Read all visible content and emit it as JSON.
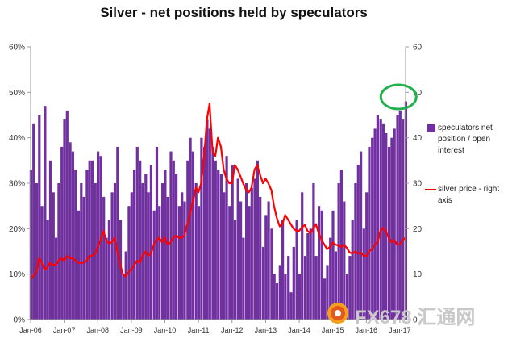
{
  "chart_data": {
    "type": "bar",
    "title": "Silver - net positions held by speculators",
    "x_tick_labels": [
      "Jan-06",
      "Jan-07",
      "Jan-08",
      "Jan-09",
      "Jan-10",
      "Jan-11",
      "Jan-12",
      "Jan-13",
      "Jan-14",
      "Jan-15",
      "Jan-16",
      "Jan-17"
    ],
    "y_left_ticks": [
      "0%",
      "10%",
      "20%",
      "30%",
      "40%",
      "50%",
      "60%"
    ],
    "y_right_ticks": [
      "0",
      "10",
      "20",
      "30",
      "40",
      "50",
      "60"
    ],
    "ylim_left": [
      0,
      60
    ],
    "ylim_right": [
      0,
      60
    ],
    "grid": false,
    "legend_position": "right",
    "series": [
      {
        "name": "speculators net position / open interest",
        "type": "bar",
        "axis": "left",
        "color": "#7030a0",
        "x": [
          2006.0,
          2006.08,
          2006.17,
          2006.25,
          2006.33,
          2006.42,
          2006.5,
          2006.58,
          2006.67,
          2006.75,
          2006.83,
          2006.92,
          2007.0,
          2007.08,
          2007.17,
          2007.25,
          2007.33,
          2007.42,
          2007.5,
          2007.58,
          2007.67,
          2007.75,
          2007.83,
          2007.92,
          2008.0,
          2008.08,
          2008.17,
          2008.25,
          2008.33,
          2008.42,
          2008.5,
          2008.58,
          2008.67,
          2008.75,
          2008.83,
          2008.92,
          2009.0,
          2009.08,
          2009.17,
          2009.25,
          2009.33,
          2009.42,
          2009.5,
          2009.58,
          2009.67,
          2009.75,
          2009.83,
          2009.92,
          2010.0,
          2010.08,
          2010.17,
          2010.25,
          2010.33,
          2010.42,
          2010.5,
          2010.58,
          2010.67,
          2010.75,
          2010.83,
          2010.92,
          2011.0,
          2011.08,
          2011.17,
          2011.25,
          2011.33,
          2011.42,
          2011.5,
          2011.58,
          2011.67,
          2011.75,
          2011.83,
          2011.92,
          2012.0,
          2012.08,
          2012.17,
          2012.25,
          2012.33,
          2012.42,
          2012.5,
          2012.58,
          2012.67,
          2012.75,
          2012.83,
          2012.92,
          2013.0,
          2013.08,
          2013.17,
          2013.25,
          2013.33,
          2013.42,
          2013.5,
          2013.58,
          2013.67,
          2013.75,
          2013.83,
          2013.92,
          2014.0,
          2014.08,
          2014.17,
          2014.25,
          2014.33,
          2014.42,
          2014.5,
          2014.58,
          2014.67,
          2014.75,
          2014.83,
          2014.92,
          2015.0,
          2015.08,
          2015.17,
          2015.25,
          2015.33,
          2015.42,
          2015.5,
          2015.58,
          2015.67,
          2015.75,
          2015.83,
          2015.92,
          2016.0,
          2016.08,
          2016.17,
          2016.25,
          2016.33,
          2016.42,
          2016.5,
          2016.58,
          2016.67,
          2016.75,
          2016.83,
          2016.92,
          2017.0,
          2017.08,
          2017.17
        ],
        "values": [
          33,
          43,
          30,
          45,
          25,
          47,
          22,
          35,
          28,
          18,
          30,
          38,
          44,
          46,
          39,
          37,
          33,
          24,
          30,
          27,
          33,
          35,
          35,
          30,
          37,
          36,
          27,
          18,
          22,
          28,
          30,
          38,
          22,
          10,
          15,
          25,
          28,
          33,
          38,
          35,
          30,
          32,
          28,
          34,
          24,
          38,
          25,
          30,
          33,
          27,
          37,
          35,
          32,
          25,
          28,
          26,
          35,
          40,
          37,
          30,
          25,
          40,
          38,
          44,
          42,
          38,
          35,
          33,
          32,
          28,
          36,
          25,
          34,
          22,
          31,
          26,
          18,
          30,
          25,
          29,
          31,
          35,
          27,
          16,
          23,
          26,
          20,
          10,
          8,
          12,
          22,
          10,
          14,
          6,
          16,
          22,
          10,
          28,
          14,
          19,
          20,
          30,
          14,
          25,
          24,
          9,
          12,
          18,
          24,
          15,
          30,
          33,
          26,
          10,
          14,
          22,
          30,
          34,
          37,
          20,
          28,
          38,
          40,
          42,
          45,
          44,
          43,
          41,
          38,
          40,
          42,
          45,
          46,
          44,
          48
        ]
      },
      {
        "name": "silver price - right axis",
        "type": "line",
        "axis": "right",
        "color": "#ff0000",
        "x": [
          2006.0,
          2006.08,
          2006.17,
          2006.25,
          2006.33,
          2006.42,
          2006.5,
          2006.58,
          2006.67,
          2006.75,
          2006.83,
          2006.92,
          2007.0,
          2007.08,
          2007.17,
          2007.25,
          2007.33,
          2007.42,
          2007.5,
          2007.58,
          2007.67,
          2007.75,
          2007.83,
          2007.92,
          2008.0,
          2008.08,
          2008.17,
          2008.25,
          2008.33,
          2008.42,
          2008.5,
          2008.58,
          2008.67,
          2008.75,
          2008.83,
          2008.92,
          2009.0,
          2009.08,
          2009.17,
          2009.25,
          2009.33,
          2009.42,
          2009.5,
          2009.58,
          2009.67,
          2009.75,
          2009.83,
          2009.92,
          2010.0,
          2010.08,
          2010.17,
          2010.25,
          2010.33,
          2010.42,
          2010.5,
          2010.58,
          2010.67,
          2010.75,
          2010.83,
          2010.92,
          2011.0,
          2011.08,
          2011.17,
          2011.25,
          2011.33,
          2011.42,
          2011.5,
          2011.58,
          2011.67,
          2011.75,
          2011.83,
          2011.92,
          2012.0,
          2012.08,
          2012.17,
          2012.25,
          2012.33,
          2012.42,
          2012.5,
          2012.58,
          2012.67,
          2012.75,
          2012.83,
          2012.92,
          2013.0,
          2013.08,
          2013.17,
          2013.25,
          2013.33,
          2013.42,
          2013.5,
          2013.58,
          2013.67,
          2013.75,
          2013.83,
          2013.92,
          2014.0,
          2014.08,
          2014.17,
          2014.25,
          2014.33,
          2014.42,
          2014.5,
          2014.58,
          2014.67,
          2014.75,
          2014.83,
          2014.92,
          2015.0,
          2015.08,
          2015.17,
          2015.25,
          2015.33,
          2015.42,
          2015.5,
          2015.58,
          2015.67,
          2015.75,
          2015.83,
          2015.92,
          2016.0,
          2016.08,
          2016.17,
          2016.25,
          2016.33,
          2016.42,
          2016.5,
          2016.58,
          2016.67,
          2016.75,
          2016.83,
          2016.92,
          2017.0,
          2017.08,
          2017.17
        ],
        "values": [
          9,
          9.5,
          10.5,
          13.5,
          12.5,
          11,
          11.5,
          12.5,
          12,
          12,
          13,
          13.5,
          13,
          14,
          13.5,
          13.5,
          13,
          12.5,
          12.5,
          12.5,
          13,
          14,
          14,
          14.5,
          16,
          17.5,
          19.5,
          17.5,
          16.8,
          17,
          18,
          15,
          12,
          10,
          9.5,
          10.5,
          11,
          12,
          13,
          12.5,
          14,
          15,
          14,
          14.5,
          16.5,
          17.5,
          18,
          17,
          18,
          16.5,
          17,
          18,
          18.5,
          18,
          18,
          18.5,
          21,
          23,
          26,
          29,
          28,
          30,
          36,
          44,
          47.5,
          37,
          36,
          40,
          38,
          33,
          31,
          30,
          30,
          34,
          33,
          31.5,
          30,
          28.5,
          28,
          29,
          33,
          34,
          32,
          30,
          31,
          30,
          28.5,
          25,
          22.5,
          20.5,
          21,
          23,
          22,
          21,
          20,
          19.5,
          19.5,
          20.3,
          20.8,
          19.5,
          19,
          20,
          21,
          19,
          17.5,
          16.5,
          15.5,
          16,
          17,
          16.5,
          16.3,
          16,
          16.5,
          15.8,
          14.8,
          14.5,
          15,
          14.5,
          14.8,
          14,
          14,
          15,
          15.5,
          16.5,
          17,
          19.5,
          20.2,
          19.5,
          18,
          17,
          17.5,
          16.5,
          16.5,
          17.5,
          18
        ]
      }
    ],
    "legend": [
      {
        "series": 0,
        "label": "speculators net position / open interest"
      },
      {
        "series": 1,
        "label": "silver price - right axis"
      }
    ],
    "highlight": {
      "shape": "ellipse",
      "color": "#22b14c",
      "x_center": 2016.96,
      "y_center": 49
    }
  },
  "watermark": {
    "text": "FX678 汇通网"
  }
}
